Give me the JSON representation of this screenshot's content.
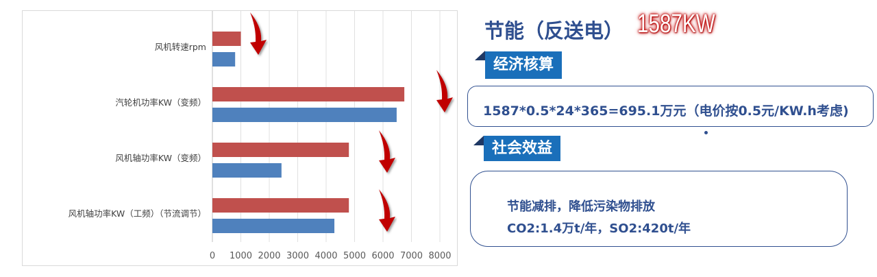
{
  "chart_data": {
    "type": "bar",
    "orientation": "horizontal",
    "categories": [
      "风机转速rpm",
      "汽轮机功率KW（变频）",
      "风机轴功率KW（变频）",
      "风机轴功率KW（工频）（节流调节）"
    ],
    "series": [
      {
        "values": [
          1000,
          6750,
          4800,
          4800
        ],
        "color": "#c0504d"
      },
      {
        "values": [
          800,
          6480,
          2430,
          4290
        ],
        "color": "#4f81bd"
      }
    ],
    "xlim": [
      0,
      8000
    ],
    "xticks": [
      "0",
      "1000",
      "2000",
      "3000",
      "4000",
      "5000",
      "6000",
      "7000",
      "8000"
    ],
    "grid": true,
    "annotations": "red downward arrows beside each category"
  },
  "right": {
    "title": "节能（反送电）",
    "highlight": "1587KW",
    "section1": "经济核算",
    "calc": "1587*0.5*24*365=695.1万元（电价按0.5元/KW.h考虑)",
    "section2": "社会效益",
    "benefit1": "节能减排，降低污染物排放",
    "benefit2": "CO2:1.4万t/年，SO2:420t/年"
  },
  "colors": {
    "accent": "#1a6fba",
    "text": "#2f4f8f",
    "highlight": "#c00000"
  }
}
